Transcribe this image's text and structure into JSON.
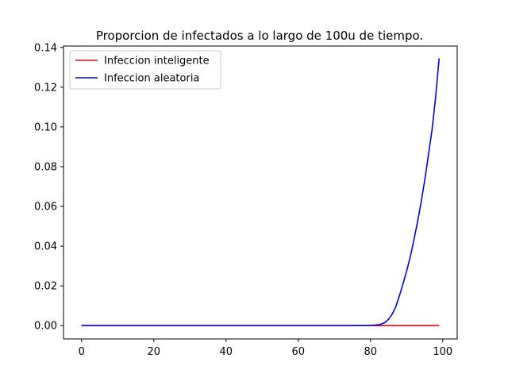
{
  "chart_data": {
    "type": "line",
    "title": "Proporcion de infectados a lo largo de 100u de tiempo.",
    "xlabel": "",
    "ylabel": "",
    "xlim": [
      -5,
      104
    ],
    "ylim": [
      -0.0067,
      0.1407
    ],
    "xticks": [
      0,
      20,
      40,
      60,
      80,
      100
    ],
    "yticks": [
      0.0,
      0.02,
      0.04,
      0.06,
      0.08,
      0.1,
      0.12,
      0.14
    ],
    "ytick_labels": [
      "0.00",
      "0.02",
      "0.04",
      "0.06",
      "0.08",
      "0.10",
      "0.12",
      "0.14"
    ],
    "grid": false,
    "legend_position": "upper-left",
    "series": [
      {
        "name": "Infeccion inteligente",
        "color": "#ff0000",
        "x": [
          0,
          99
        ],
        "y": [
          0.0,
          0.0
        ]
      },
      {
        "name": "Infeccion aleatoria",
        "color": "#0000ff",
        "x": [
          0,
          78,
          80,
          81,
          82,
          83,
          84,
          85,
          86,
          87,
          88,
          89,
          90,
          91,
          92,
          93,
          94,
          95,
          96,
          97,
          98,
          99
        ],
        "y": [
          0.0,
          0.0,
          0.0001,
          0.0002,
          0.0004,
          0.0008,
          0.0016,
          0.0032,
          0.0058,
          0.0095,
          0.015,
          0.021,
          0.0275,
          0.0345,
          0.043,
          0.052,
          0.062,
          0.073,
          0.0855,
          0.098,
          0.1145,
          0.1345
        ]
      }
    ]
  }
}
